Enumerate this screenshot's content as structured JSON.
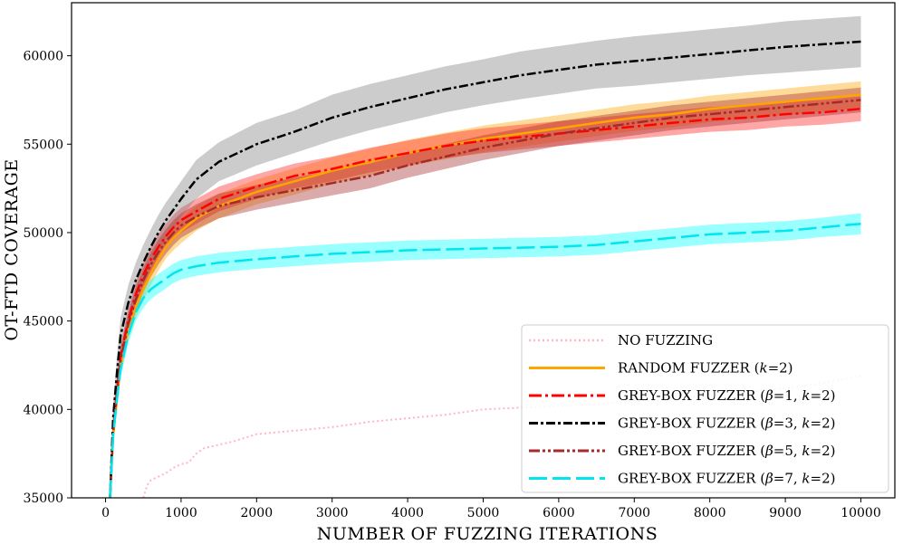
{
  "chart_data": {
    "type": "line",
    "xlabel": "NUMBER OF FUZZING ITERATIONS",
    "ylabel": "OT-FTD COVERAGE",
    "xlim": [
      -450,
      10450
    ],
    "ylim": [
      35000,
      63000
    ],
    "xticks": [
      0,
      1000,
      2000,
      3000,
      4000,
      5000,
      6000,
      7000,
      8000,
      9000,
      10000
    ],
    "yticks": [
      35000,
      40000,
      45000,
      50000,
      55000,
      60000
    ],
    "xtick_labels": [
      "0",
      "1000",
      "2000",
      "3000",
      "4000",
      "5000",
      "6000",
      "7000",
      "8000",
      "9000",
      "10000"
    ],
    "ytick_labels": [
      "35000",
      "40000",
      "45000",
      "50000",
      "55000",
      "60000"
    ],
    "grid": false,
    "legend_position": "bottom-right",
    "series": [
      {
        "name": "NO FUZZING",
        "legend_text": "NO FUZZING",
        "color": "#ffb6c1",
        "dash": "2,3",
        "width": 2,
        "x": [
          500,
          550,
          600,
          700,
          800,
          900,
          1000,
          1100,
          1200,
          1300,
          1500,
          1700,
          2000,
          2500,
          3000,
          3500,
          4000,
          4500,
          5000,
          5500,
          6000,
          6500,
          7000,
          7500,
          8000,
          8500,
          9000,
          9500,
          10000
        ],
        "y": [
          35000,
          35700,
          36000,
          36200,
          36400,
          36700,
          36900,
          37000,
          37500,
          37800,
          38000,
          38200,
          38600,
          38800,
          39000,
          39300,
          39500,
          39700,
          40000,
          40100,
          40200,
          40300,
          40450,
          40600,
          40800,
          41000,
          41200,
          41500,
          41900
        ],
        "band": null
      },
      {
        "name": "RANDOM FUZZER",
        "legend_text": "RANDOM FUZZER (",
        "legend_suffix": "=2)",
        "color": "#ffa500",
        "band_color": "#ffa500",
        "dash": "",
        "width": 2.5,
        "x": [
          60,
          100,
          150,
          200,
          300,
          400,
          500,
          600,
          700,
          800,
          900,
          1000,
          1200,
          1500,
          2000,
          2500,
          3000,
          3500,
          4000,
          4500,
          5000,
          5500,
          6000,
          6500,
          7000,
          7500,
          8000,
          8500,
          9000,
          9500,
          10000
        ],
        "y": [
          35000,
          38500,
          40500,
          42500,
          44500,
          45800,
          46800,
          47700,
          48500,
          49200,
          49700,
          50100,
          50800,
          51500,
          52300,
          52900,
          53500,
          54000,
          54500,
          54900,
          55300,
          55600,
          55900,
          56200,
          56500,
          56700,
          57000,
          57200,
          57400,
          57600,
          57800
        ],
        "band": [
          600,
          600,
          600,
          600,
          600,
          600,
          650,
          650,
          650,
          650,
          700,
          700,
          700,
          700,
          700,
          750,
          750,
          750,
          750,
          750,
          750,
          750,
          750,
          750,
          750,
          750,
          750,
          750,
          750,
          750,
          750
        ]
      },
      {
        "name": "GREY-BOX FUZZER b1",
        "legend_text": "GREY-BOX FUZZER (",
        "legend_suffix": "=1, ",
        "legend_beta": "β",
        "legend_end": "=2)",
        "color": "#ff0000",
        "band_color": "#ff2020",
        "dash": "14,4,3,4",
        "width": 2.5,
        "x": [
          60,
          100,
          150,
          200,
          300,
          400,
          500,
          600,
          700,
          800,
          900,
          1000,
          1200,
          1500,
          2000,
          2500,
          3000,
          3500,
          4000,
          4500,
          5000,
          5500,
          6000,
          6500,
          7000,
          7500,
          8000,
          8500,
          9000,
          9500,
          10000
        ],
        "y": [
          35000,
          38800,
          41000,
          43000,
          45000,
          46500,
          47600,
          48500,
          49200,
          49800,
          50300,
          50700,
          51200,
          51900,
          52600,
          53200,
          53600,
          54100,
          54500,
          54900,
          55200,
          55400,
          55600,
          55800,
          56000,
          56200,
          56400,
          56500,
          56700,
          56800,
          57000
        ],
        "band": [
          600,
          600,
          600,
          650,
          650,
          700,
          700,
          700,
          700,
          700,
          700,
          700,
          700,
          700,
          700,
          700,
          700,
          700,
          700,
          700,
          700,
          700,
          700,
          700,
          700,
          700,
          700,
          700,
          700,
          700,
          700
        ]
      },
      {
        "name": "GREY-BOX FUZZER b3",
        "legend_text": "GREY-BOX FUZZER (",
        "legend_suffix": "=3, ",
        "legend_beta": "β",
        "legend_end": "=2)",
        "color": "#000000",
        "band_color": "#7f7f7f",
        "dash": "10,3,3,3",
        "width": 2.5,
        "x": [
          60,
          100,
          150,
          200,
          300,
          400,
          500,
          600,
          700,
          800,
          900,
          1000,
          1200,
          1500,
          2000,
          2500,
          3000,
          3500,
          4000,
          4500,
          5000,
          5500,
          6000,
          6500,
          7000,
          7500,
          8000,
          8500,
          9000,
          9500,
          10000
        ],
        "y": [
          35000,
          39500,
          42000,
          44200,
          46000,
          47300,
          48300,
          49200,
          50000,
          50700,
          51300,
          51900,
          53000,
          54000,
          55000,
          55700,
          56500,
          57100,
          57600,
          58100,
          58500,
          58900,
          59200,
          59500,
          59700,
          59900,
          60100,
          60300,
          60500,
          60650,
          60800
        ],
        "band": [
          700,
          800,
          900,
          1000,
          1000,
          1000,
          1000,
          1000,
          1000,
          1000,
          1000,
          1000,
          1100,
          1100,
          1200,
          1200,
          1300,
          1300,
          1300,
          1300,
          1300,
          1350,
          1350,
          1350,
          1400,
          1400,
          1400,
          1400,
          1450,
          1450,
          1450
        ]
      },
      {
        "name": "GREY-BOX FUZZER b5",
        "legend_text": "GREY-BOX FUZZER (",
        "legend_suffix": "=5, ",
        "legend_beta": "β",
        "legend_end": "=2)",
        "color": "#a52a2a",
        "band_color": "#a52a2a",
        "dash": "12,3,3,3,3,3",
        "width": 2.5,
        "x": [
          60,
          100,
          150,
          200,
          300,
          400,
          500,
          600,
          700,
          800,
          900,
          1000,
          1200,
          1500,
          2000,
          2500,
          3000,
          3500,
          4000,
          4500,
          5000,
          5500,
          6000,
          6500,
          7000,
          7500,
          8000,
          8500,
          9000,
          9500,
          10000
        ],
        "y": [
          35000,
          38700,
          40800,
          42800,
          44800,
          46200,
          47300,
          48200,
          48900,
          49500,
          50000,
          50400,
          50900,
          51500,
          52000,
          52400,
          52800,
          53200,
          53800,
          54300,
          54800,
          55200,
          55600,
          55900,
          56200,
          56500,
          56700,
          56900,
          57100,
          57300,
          57500
        ],
        "band": [
          600,
          600,
          600,
          650,
          650,
          700,
          700,
          700,
          700,
          700,
          700,
          700,
          700,
          700,
          700,
          700,
          700,
          700,
          700,
          700,
          700,
          700,
          700,
          700,
          700,
          700,
          700,
          700,
          700,
          700,
          700
        ]
      },
      {
        "name": "GREY-BOX FUZZER b7",
        "legend_text": "GREY-BOX FUZZER (",
        "legend_suffix": "=7, ",
        "legend_beta": "β",
        "legend_end": "=2)",
        "color": "#00e5ee",
        "band_color": "#00ffff",
        "dash": "20,6",
        "width": 2.5,
        "x": [
          60,
          100,
          150,
          200,
          300,
          400,
          500,
          600,
          700,
          800,
          900,
          1000,
          1200,
          1500,
          2000,
          2500,
          3000,
          3500,
          4000,
          4500,
          5000,
          5500,
          6000,
          6500,
          7000,
          7500,
          8000,
          8500,
          9000,
          9500,
          10000
        ],
        "y": [
          35000,
          38500,
          40500,
          42300,
          44200,
          45500,
          46300,
          46800,
          47100,
          47400,
          47700,
          47900,
          48100,
          48300,
          48500,
          48650,
          48800,
          48900,
          49000,
          49050,
          49100,
          49150,
          49200,
          49300,
          49500,
          49700,
          49900,
          50000,
          50100,
          50300,
          50500
        ],
        "band": [
          500,
          500,
          500,
          500,
          500,
          500,
          550,
          550,
          550,
          550,
          550,
          550,
          550,
          550,
          550,
          550,
          550,
          550,
          550,
          550,
          550,
          550,
          550,
          550,
          550,
          550,
          550,
          550,
          550,
          550,
          600
        ]
      }
    ]
  }
}
